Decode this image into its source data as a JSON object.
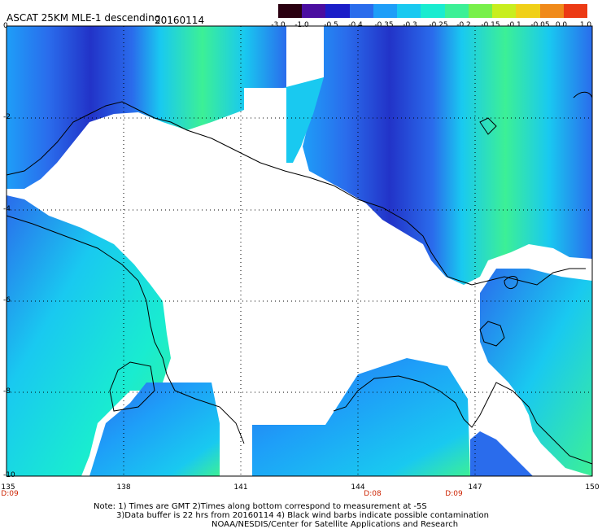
{
  "header": {
    "title": "ASCAT 25KM MLE-1 descending",
    "date": "20160114"
  },
  "colorbar": {
    "labels": [
      "-3.0",
      "-1.0",
      "-0.5",
      "-0.4",
      "-0.35",
      "-0.3",
      "-0.25",
      "-0.2",
      "-0.15",
      "-0.1",
      "-0.05",
      "0.0",
      "1.0"
    ]
  },
  "axes": {
    "lat_labels": [
      "0",
      "-2",
      "-4",
      "-6",
      "-8",
      "-10"
    ],
    "lon_labels": [
      "135",
      "138",
      "141",
      "144",
      "147",
      "150"
    ],
    "time_labels": [
      "D:09",
      "D:08",
      "D:09"
    ]
  },
  "notes": {
    "line1": "Note: 1) Times are GMT 2)Times along bottom correspond to measurement at -5S",
    "line2": "3)Data buffer is 22 hrs from 20160114 4) Black wind barbs indicate possible contamination",
    "line3": "NOAA/NESDIS/Center for Satellite Applications and Research"
  },
  "colors": {
    "palette": [
      "#4a0010",
      "#5a0ea0",
      "#2233c8",
      "#2a6cec",
      "#1e9ef8",
      "#19c9f0",
      "#19ecd0",
      "#3cf096",
      "#78f04a",
      "#c8ee1e",
      "#f0d018",
      "#f08a1a",
      "#ec3a14"
    ],
    "grid": "#000000",
    "land": "#ffffff"
  }
}
